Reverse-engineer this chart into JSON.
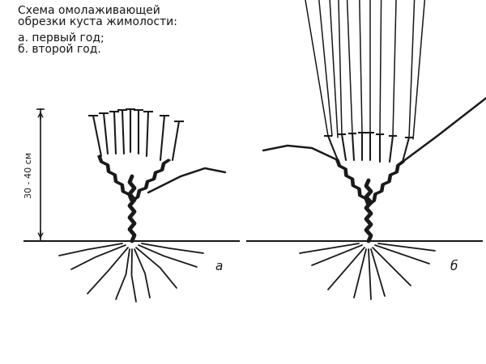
{
  "title_line1": "Схема омолаживающей",
  "title_line2": "обрезки куста жимолости:",
  "label_a": "а. первый год;",
  "label_b": "б. второй год.",
  "label_a_marker": "а",
  "label_b_marker": "б",
  "dimension_label": "30 - 40 см",
  "bg_color": "#ffffff",
  "line_color": "#1a1a1a",
  "font_size_title": 10,
  "font_size_label": 10,
  "font_size_marker": 11
}
